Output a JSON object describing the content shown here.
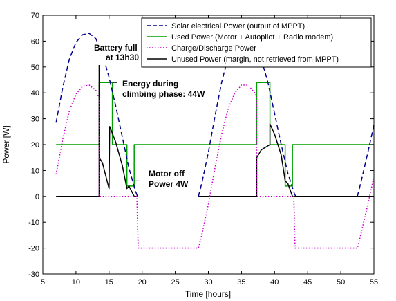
{
  "chart_data": {
    "type": "line",
    "xlabel": "Time [hours]",
    "ylabel": "Power [W]",
    "xlim": [
      5,
      55
    ],
    "ylim": [
      -30,
      70
    ],
    "xticks": [
      5,
      10,
      15,
      20,
      25,
      30,
      35,
      40,
      45,
      50,
      55
    ],
    "yticks": [
      -30,
      -20,
      -10,
      0,
      10,
      20,
      30,
      40,
      50,
      60,
      70
    ],
    "grid": false,
    "legend": "top-right",
    "series": [
      {
        "name": "Solar electrical Power (output of MPPT)",
        "color": "#00008b",
        "dash": "dashed",
        "segments": [
          [
            [
              7,
              28.5
            ],
            [
              8,
              42
            ],
            [
              9,
              53
            ],
            [
              10,
              59.5
            ],
            [
              11,
              62.5
            ],
            [
              12,
              63
            ],
            [
              13,
              61
            ],
            [
              14,
              55
            ],
            [
              15,
              46
            ],
            [
              16,
              35
            ],
            [
              17,
              23
            ],
            [
              18,
              11
            ],
            [
              19,
              2
            ],
            [
              19.3,
              0
            ]
          ],
          [
            [
              28.5,
              0
            ],
            [
              29,
              5
            ],
            [
              30,
              17
            ],
            [
              31,
              31
            ],
            [
              32,
              44
            ],
            [
              33,
              54
            ],
            [
              34,
              60
            ],
            [
              35,
              63
            ],
            [
              36,
              63
            ],
            [
              37,
              60
            ],
            [
              38,
              53
            ],
            [
              39,
              44
            ],
            [
              40,
              32
            ],
            [
              41,
              20
            ],
            [
              42,
              9
            ],
            [
              43,
              1
            ],
            [
              43.2,
              0
            ]
          ],
          [
            [
              52.5,
              0
            ],
            [
              53,
              5
            ],
            [
              54,
              16
            ],
            [
              55,
              27.5
            ]
          ]
        ]
      },
      {
        "name": "Used Power (Motor + Autopilot + Radio modem)",
        "color": "#00a000",
        "dash": "solid",
        "segments": [
          [
            [
              7,
              20
            ],
            [
              13.5,
              20
            ],
            [
              13.5,
              44
            ],
            [
              15.5,
              44
            ],
            [
              15.5,
              20
            ],
            [
              17.7,
              20
            ],
            [
              17.7,
              4
            ],
            [
              18.8,
              4
            ],
            [
              18.8,
              20
            ],
            [
              37.3,
              20
            ],
            [
              37.3,
              44
            ],
            [
              39.3,
              44
            ],
            [
              39.3,
              20
            ],
            [
              41.6,
              20
            ],
            [
              41.6,
              4
            ],
            [
              42.7,
              4
            ],
            [
              42.7,
              20
            ],
            [
              55,
              20
            ]
          ]
        ]
      },
      {
        "name": "Charge/Discharge Power",
        "color": "#cc00cc",
        "dash": "dotted",
        "segments": [
          [
            [
              7,
              8.5
            ],
            [
              8,
              22
            ],
            [
              9,
              33
            ],
            [
              10,
              39.5
            ],
            [
              11,
              42.5
            ],
            [
              12,
              43
            ],
            [
              13,
              41
            ],
            [
              13.5,
              38
            ],
            [
              13.5,
              0
            ],
            [
              15.5,
              0
            ],
            [
              15.5,
              0
            ],
            [
              17.7,
              0
            ],
            [
              18.8,
              0
            ],
            [
              19.2,
              0
            ],
            [
              19.4,
              -20
            ],
            [
              28.5,
              -20
            ],
            [
              29,
              -15
            ],
            [
              30,
              -3
            ],
            [
              31,
              11
            ],
            [
              32,
              24
            ],
            [
              33,
              34
            ],
            [
              34,
              40
            ],
            [
              35,
              43
            ],
            [
              36,
              43
            ],
            [
              37,
              40
            ],
            [
              37.3,
              38
            ],
            [
              37.3,
              0
            ],
            [
              42.9,
              0
            ],
            [
              43.1,
              -20
            ],
            [
              52.5,
              -20
            ],
            [
              53,
              -15
            ],
            [
              54,
              -4
            ],
            [
              55,
              7.5
            ]
          ]
        ]
      },
      {
        "name": "Unused Power (margin, not retrieved from MPPT)",
        "color": "#000000",
        "dash": "solid",
        "segments": [
          [
            [
              7,
              0
            ],
            [
              13.5,
              0
            ],
            [
              13.5,
              56
            ],
            [
              13.5,
              15
            ],
            [
              14,
              13
            ],
            [
              15,
              3
            ],
            [
              15.1,
              27
            ],
            [
              16,
              21
            ],
            [
              17,
              12
            ],
            [
              17.7,
              3
            ],
            [
              18,
              4
            ],
            [
              18.8,
              0
            ],
            [
              19.3,
              0
            ]
          ],
          [
            [
              28.5,
              0
            ],
            [
              37.3,
              0
            ],
            [
              37.3,
              15
            ],
            [
              38,
              18
            ],
            [
              39.3,
              20
            ],
            [
              39.3,
              28
            ],
            [
              40,
              24
            ],
            [
              41,
              16
            ],
            [
              41.6,
              6
            ],
            [
              42,
              5
            ],
            [
              42.7,
              0
            ],
            [
              55,
              0
            ]
          ]
        ]
      }
    ],
    "annotations": [
      {
        "lines": [
          "Battery full",
          "at 13h30"
        ]
      },
      {
        "lines": [
          "Energy during",
          "climbing phase: 44W"
        ]
      },
      {
        "lines": [
          "Motor off",
          "Power 4W"
        ]
      }
    ]
  }
}
